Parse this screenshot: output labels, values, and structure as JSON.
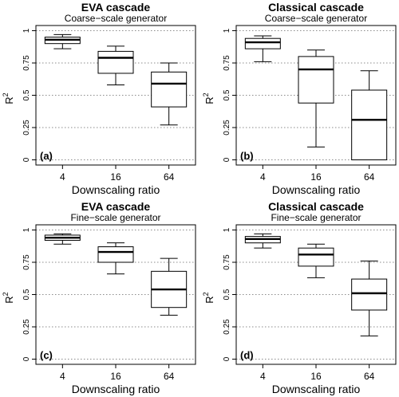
{
  "chart_data": [
    {
      "type": "box",
      "title": "EVA cascade",
      "subtitle": "Coarse−scale generator",
      "panel_label": "(a)",
      "xlabel": "Downscaling ratio",
      "ylabel": "R",
      "ylabel_sup": "2",
      "categories": [
        "4",
        "16",
        "64"
      ],
      "yticks": [
        0,
        0.25,
        0.5,
        0.75,
        1
      ],
      "ytick_labels": [
        "0",
        "0.25",
        "0.5",
        "0.75",
        "1"
      ],
      "ylim": [
        0,
        1
      ],
      "grid": "horizontal dotted",
      "boxes": [
        {
          "whisker_low": 0.86,
          "q1": 0.9,
          "median": 0.93,
          "q3": 0.95,
          "whisker_high": 0.97
        },
        {
          "whisker_low": 0.58,
          "q1": 0.67,
          "median": 0.79,
          "q3": 0.84,
          "whisker_high": 0.88
        },
        {
          "whisker_low": 0.27,
          "q1": 0.41,
          "median": 0.59,
          "q3": 0.68,
          "whisker_high": 0.75
        }
      ]
    },
    {
      "type": "box",
      "title": "Classical cascade",
      "subtitle": "Coarse−scale generator",
      "panel_label": "(b)",
      "xlabel": "Downscaling ratio",
      "ylabel": "R",
      "ylabel_sup": "2",
      "categories": [
        "4",
        "16",
        "64"
      ],
      "yticks": [
        0,
        0.25,
        0.5,
        0.75,
        1
      ],
      "ytick_labels": [
        "0",
        "0.25",
        "0.5",
        "0.75",
        "1"
      ],
      "ylim": [
        0,
        1
      ],
      "grid": "horizontal dotted",
      "boxes": [
        {
          "whisker_low": 0.76,
          "q1": 0.86,
          "median": 0.91,
          "q3": 0.94,
          "whisker_high": 0.96
        },
        {
          "whisker_low": 0.1,
          "q1": 0.44,
          "median": 0.7,
          "q3": 0.8,
          "whisker_high": 0.85
        },
        {
          "whisker_low": 0.0,
          "q1": 0.0,
          "median": 0.31,
          "q3": 0.54,
          "whisker_high": 0.69
        }
      ]
    },
    {
      "type": "box",
      "title": "EVA cascade",
      "subtitle": "Fine−scale generator",
      "panel_label": "(c)",
      "xlabel": "Downscaling ratio",
      "ylabel": "R",
      "ylabel_sup": "2",
      "categories": [
        "4",
        "16",
        "64"
      ],
      "yticks": [
        0,
        0.25,
        0.5,
        0.75,
        1
      ],
      "ytick_labels": [
        "0",
        "0.25",
        "0.5",
        "0.75",
        "1"
      ],
      "ylim": [
        0,
        1
      ],
      "grid": "horizontal dotted",
      "boxes": [
        {
          "whisker_low": 0.89,
          "q1": 0.92,
          "median": 0.94,
          "q3": 0.96,
          "whisker_high": 0.97
        },
        {
          "whisker_low": 0.66,
          "q1": 0.75,
          "median": 0.83,
          "q3": 0.87,
          "whisker_high": 0.9
        },
        {
          "whisker_low": 0.34,
          "q1": 0.4,
          "median": 0.54,
          "q3": 0.68,
          "whisker_high": 0.78
        }
      ]
    },
    {
      "type": "box",
      "title": "Classical cascade",
      "subtitle": "Fine−scale generator",
      "panel_label": "(d)",
      "xlabel": "Downscaling ratio",
      "ylabel": "R",
      "ylabel_sup": "2",
      "categories": [
        "4",
        "16",
        "64"
      ],
      "yticks": [
        0,
        0.25,
        0.5,
        0.75,
        1
      ],
      "ytick_labels": [
        "0",
        "0.25",
        "0.5",
        "0.75",
        "1"
      ],
      "ylim": [
        0,
        1
      ],
      "grid": "horizontal dotted",
      "boxes": [
        {
          "whisker_low": 0.86,
          "q1": 0.9,
          "median": 0.93,
          "q3": 0.95,
          "whisker_high": 0.97
        },
        {
          "whisker_low": 0.63,
          "q1": 0.72,
          "median": 0.81,
          "q3": 0.86,
          "whisker_high": 0.89
        },
        {
          "whisker_low": 0.18,
          "q1": 0.38,
          "median": 0.51,
          "q3": 0.62,
          "whisker_high": 0.76
        }
      ]
    }
  ]
}
